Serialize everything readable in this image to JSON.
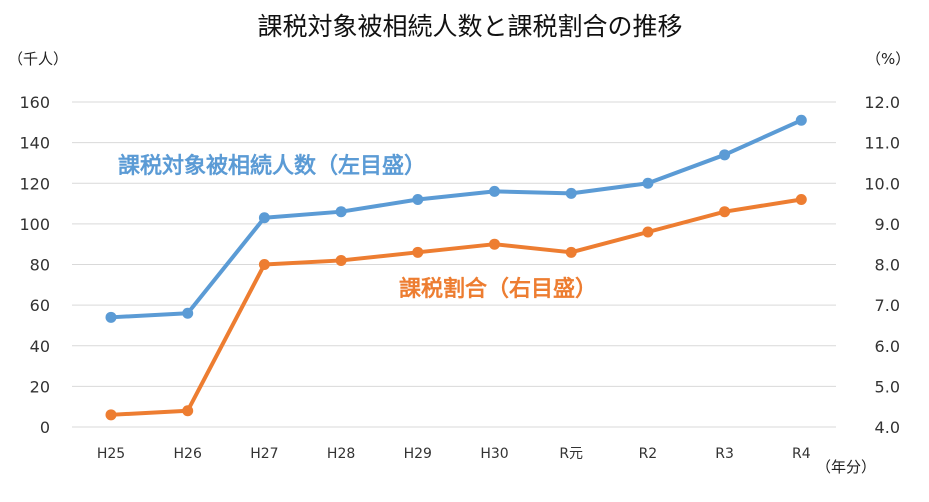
{
  "chart_data": {
    "type": "line",
    "title": "課税対象被相続人数と課税割合の推移",
    "left_axis_unit": "（千人）",
    "right_axis_unit": "（%）",
    "x_axis_unit": "（年分）",
    "categories": [
      "H25",
      "H26",
      "H27",
      "H28",
      "H29",
      "H30",
      "R元",
      "R2",
      "R3",
      "R4"
    ],
    "y_left": {
      "range": [
        0,
        160
      ],
      "ticks": [
        "0",
        "20",
        "40",
        "60",
        "80",
        "100",
        "120",
        "140",
        "160"
      ]
    },
    "y_right": {
      "range": [
        4.0,
        12.0
      ],
      "ticks": [
        "4.0",
        "5.0",
        "6.0",
        "7.0",
        "8.0",
        "9.0",
        "10.0",
        "11.0",
        "12.0"
      ]
    },
    "grid": true,
    "series": [
      {
        "name": "課税対象被相続人数（左目盛）",
        "axis": "left",
        "color": "#5B9BD5",
        "values": [
          54,
          56,
          103,
          106,
          112,
          116,
          115,
          120,
          134,
          151
        ]
      },
      {
        "name": "課税割合（右目盛）",
        "axis": "right",
        "color": "#ED7D31",
        "values": [
          4.3,
          4.4,
          8.0,
          8.1,
          8.3,
          8.5,
          8.3,
          8.8,
          9.3,
          9.6
        ]
      }
    ]
  }
}
